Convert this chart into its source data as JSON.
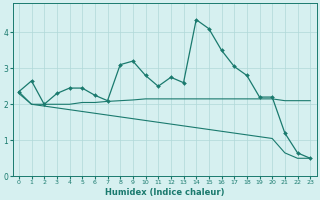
{
  "xlabel": "Humidex (Indice chaleur)",
  "bg_color": "#d6f0f0",
  "line_color": "#1a7a6e",
  "grid_color": "#b0d8d8",
  "xlim": [
    -0.5,
    23.5
  ],
  "ylim": [
    0,
    4.8
  ],
  "yticks": [
    0,
    1,
    2,
    3,
    4
  ],
  "xticks": [
    0,
    1,
    2,
    3,
    4,
    5,
    6,
    7,
    8,
    9,
    10,
    11,
    12,
    13,
    14,
    15,
    16,
    17,
    18,
    19,
    20,
    21,
    22,
    23
  ],
  "curve1_x": [
    0,
    1,
    2,
    3,
    4,
    5,
    6,
    7,
    8,
    9,
    10,
    11,
    12,
    13,
    14,
    15,
    16,
    17,
    18,
    19,
    20,
    21,
    22,
    23
  ],
  "curve1_y": [
    2.35,
    2.65,
    2.0,
    2.3,
    2.45,
    2.45,
    2.25,
    2.1,
    3.1,
    3.2,
    2.8,
    2.5,
    2.75,
    2.6,
    4.35,
    4.1,
    3.5,
    3.05,
    2.8,
    2.2,
    2.2,
    1.2,
    0.65,
    0.5
  ],
  "curve2_x": [
    0,
    1,
    2,
    3,
    4,
    5,
    6,
    7,
    8,
    9,
    10,
    11,
    12,
    13,
    14,
    15,
    16,
    17,
    18,
    19,
    20,
    21,
    22,
    23
  ],
  "curve2_y": [
    2.35,
    2.0,
    2.0,
    2.0,
    2.0,
    2.05,
    2.05,
    2.08,
    2.1,
    2.12,
    2.15,
    2.15,
    2.15,
    2.15,
    2.15,
    2.15,
    2.15,
    2.15,
    2.15,
    2.15,
    2.15,
    2.1,
    2.1,
    2.1
  ],
  "curve3_x": [
    0,
    1,
    2,
    3,
    4,
    5,
    6,
    7,
    8,
    9,
    10,
    11,
    12,
    13,
    14,
    15,
    16,
    17,
    18,
    19,
    20,
    21,
    22,
    23
  ],
  "curve3_y": [
    2.3,
    2.0,
    1.95,
    1.9,
    1.85,
    1.8,
    1.75,
    1.7,
    1.65,
    1.6,
    1.55,
    1.5,
    1.45,
    1.4,
    1.35,
    1.3,
    1.25,
    1.2,
    1.15,
    1.1,
    1.05,
    0.65,
    0.5,
    0.5
  ],
  "xlabel_fontsize": 6.0,
  "tick_fontsize": 4.5,
  "ytick_fontsize": 5.5,
  "marker_size": 2.0,
  "lw1": 0.9,
  "lw2": 0.8,
  "lw3": 0.8
}
